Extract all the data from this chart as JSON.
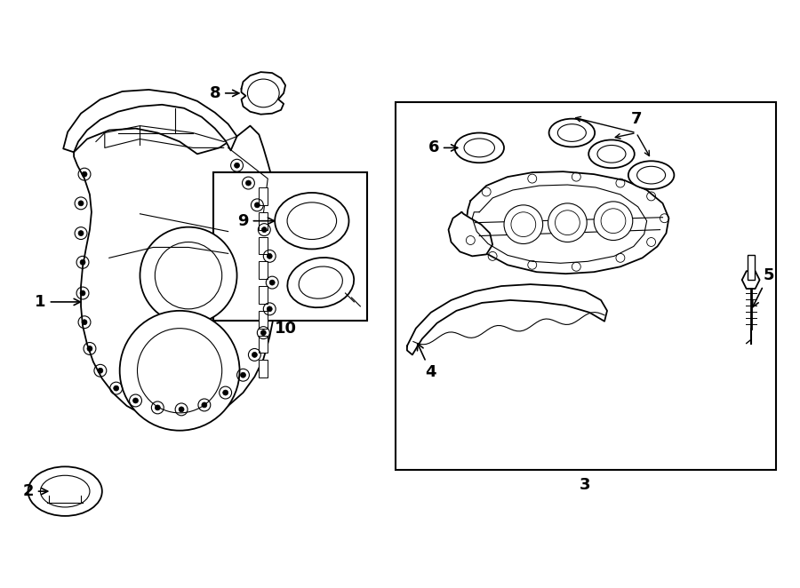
{
  "bg_color": "#ffffff",
  "line_color": "#000000",
  "fig_width": 9.0,
  "fig_height": 6.62,
  "lw_main": 1.3,
  "lw_thin": 0.8,
  "label_fontsize": 13
}
